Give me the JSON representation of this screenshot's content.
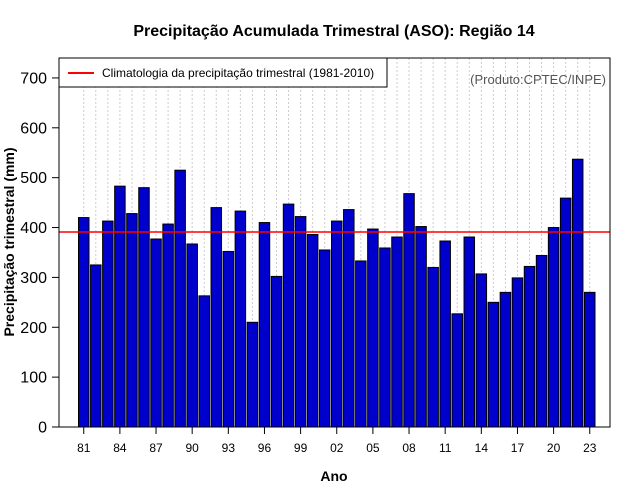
{
  "chart_data": {
    "type": "bar",
    "title": "Precipitação Acumulada Trimestral (ASO): Região 14",
    "xlabel": "Ano",
    "ylabel": "Precipitação trimestral (mm)",
    "ylim": [
      0,
      740
    ],
    "yticks": [
      0,
      100,
      200,
      300,
      400,
      500,
      600,
      700
    ],
    "categories": [
      "1981",
      "1982",
      "1983",
      "1984",
      "1985",
      "1986",
      "1987",
      "1988",
      "1989",
      "1990",
      "1991",
      "1992",
      "1993",
      "1994",
      "1995",
      "1996",
      "1997",
      "1998",
      "1999",
      "2000",
      "2001",
      "2002",
      "2003",
      "2004",
      "2005",
      "2006",
      "2007",
      "2008",
      "2009",
      "2010",
      "2011",
      "2012",
      "2013",
      "2014",
      "2015",
      "2016",
      "2017",
      "2018",
      "2019",
      "2020",
      "2021",
      "2022",
      "2023"
    ],
    "xtick_labels": [
      "81",
      "84",
      "87",
      "90",
      "93",
      "96",
      "99",
      "02",
      "05",
      "08",
      "11",
      "14",
      "17",
      "20",
      "23"
    ],
    "xtick_every": 3,
    "values": [
      420,
      325,
      413,
      483,
      428,
      480,
      377,
      407,
      515,
      367,
      263,
      440,
      352,
      433,
      210,
      410,
      302,
      447,
      422,
      386,
      355,
      413,
      436,
      333,
      397,
      359,
      381,
      468,
      402,
      320,
      373,
      227,
      381,
      307,
      250,
      270,
      299,
      322,
      344,
      400,
      459,
      537,
      270
    ],
    "bar_color": "#0000cd",
    "bar_edge_color": "#000000",
    "reference_line": {
      "value": 391,
      "color": "#ff0000",
      "label": "Climatologia da precipitação trimestral (1981-2010)"
    },
    "legend_position": "top-left",
    "grid": "vertical-dotted",
    "source_note": "(Produto:CPTEC/INPE)"
  }
}
